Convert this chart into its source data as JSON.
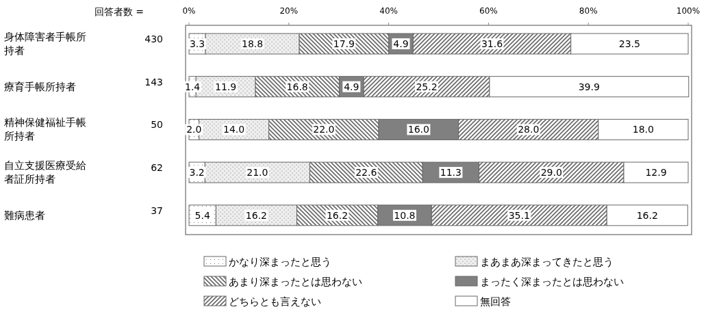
{
  "chart_data": {
    "type": "bar",
    "orientation": "horizontal",
    "stacked": true,
    "legend": "bottom",
    "categories": [
      "身体障害者手帳所持者",
      "療育手帳所持者",
      "精神保健福祉手帳所持者",
      "自立支援医療受給者証所持者",
      "難病患者"
    ],
    "x2lim": [
      0,
      100
    ],
    "x2ticks": [
      {
        "value": 0,
        "label": "0%"
      },
      {
        "value": 20,
        "label": "20%"
      },
      {
        "value": 40,
        "label": "40%"
      },
      {
        "value": 60,
        "label": "60%"
      },
      {
        "value": 80,
        "label": "80%"
      },
      {
        "value": 100,
        "label": "100%"
      }
    ],
    "annotations": [
      "回答者数 =",
      "430",
      "143",
      "50",
      "62",
      "37"
    ],
    "series": [
      {
        "name": "かなり深まったと思う",
        "color": "#666666",
        "values": [
          3.3,
          1.4,
          2.0,
          3.2,
          5.4
        ],
        "value_labels": [
          "3.3",
          "1.4",
          "2.0",
          "3.2",
          "5.4"
        ]
      },
      {
        "name": "まあまあ深まってきたと思う",
        "color": "#666666",
        "values": [
          18.8,
          11.9,
          14.0,
          21.0,
          16.2
        ],
        "value_labels": [
          "18.8",
          "11.9",
          "14.0",
          "21.0",
          "16.2"
        ]
      },
      {
        "name": "あまり深まったとは思わない",
        "color": "#666666",
        "values": [
          17.9,
          16.8,
          22.0,
          22.6,
          16.2
        ],
        "value_labels": [
          "17.9",
          "16.8",
          "22.0",
          "22.6",
          "16.2"
        ]
      },
      {
        "name": "まったく深まったとは思わない",
        "color": "#808080",
        "values": [
          4.9,
          4.9,
          16.0,
          11.3,
          10.8
        ],
        "value_labels": [
          "4.9",
          "4.9",
          "16.0",
          "11.3",
          "10.8"
        ]
      },
      {
        "name": "どちらとも言えない",
        "color": "#666666",
        "values": [
          31.6,
          25.2,
          28.0,
          29.0,
          35.1
        ],
        "value_labels": [
          "31.6",
          "25.2",
          "28.0",
          "29.0",
          "35.1"
        ]
      },
      {
        "name": "無回答",
        "color": "#ffffff",
        "values": [
          23.5,
          39.9,
          18.0,
          12.9,
          16.2
        ],
        "value_labels": [
          "23.5",
          "39.9",
          "18.0",
          "12.9",
          "16.2"
        ]
      }
    ]
  }
}
